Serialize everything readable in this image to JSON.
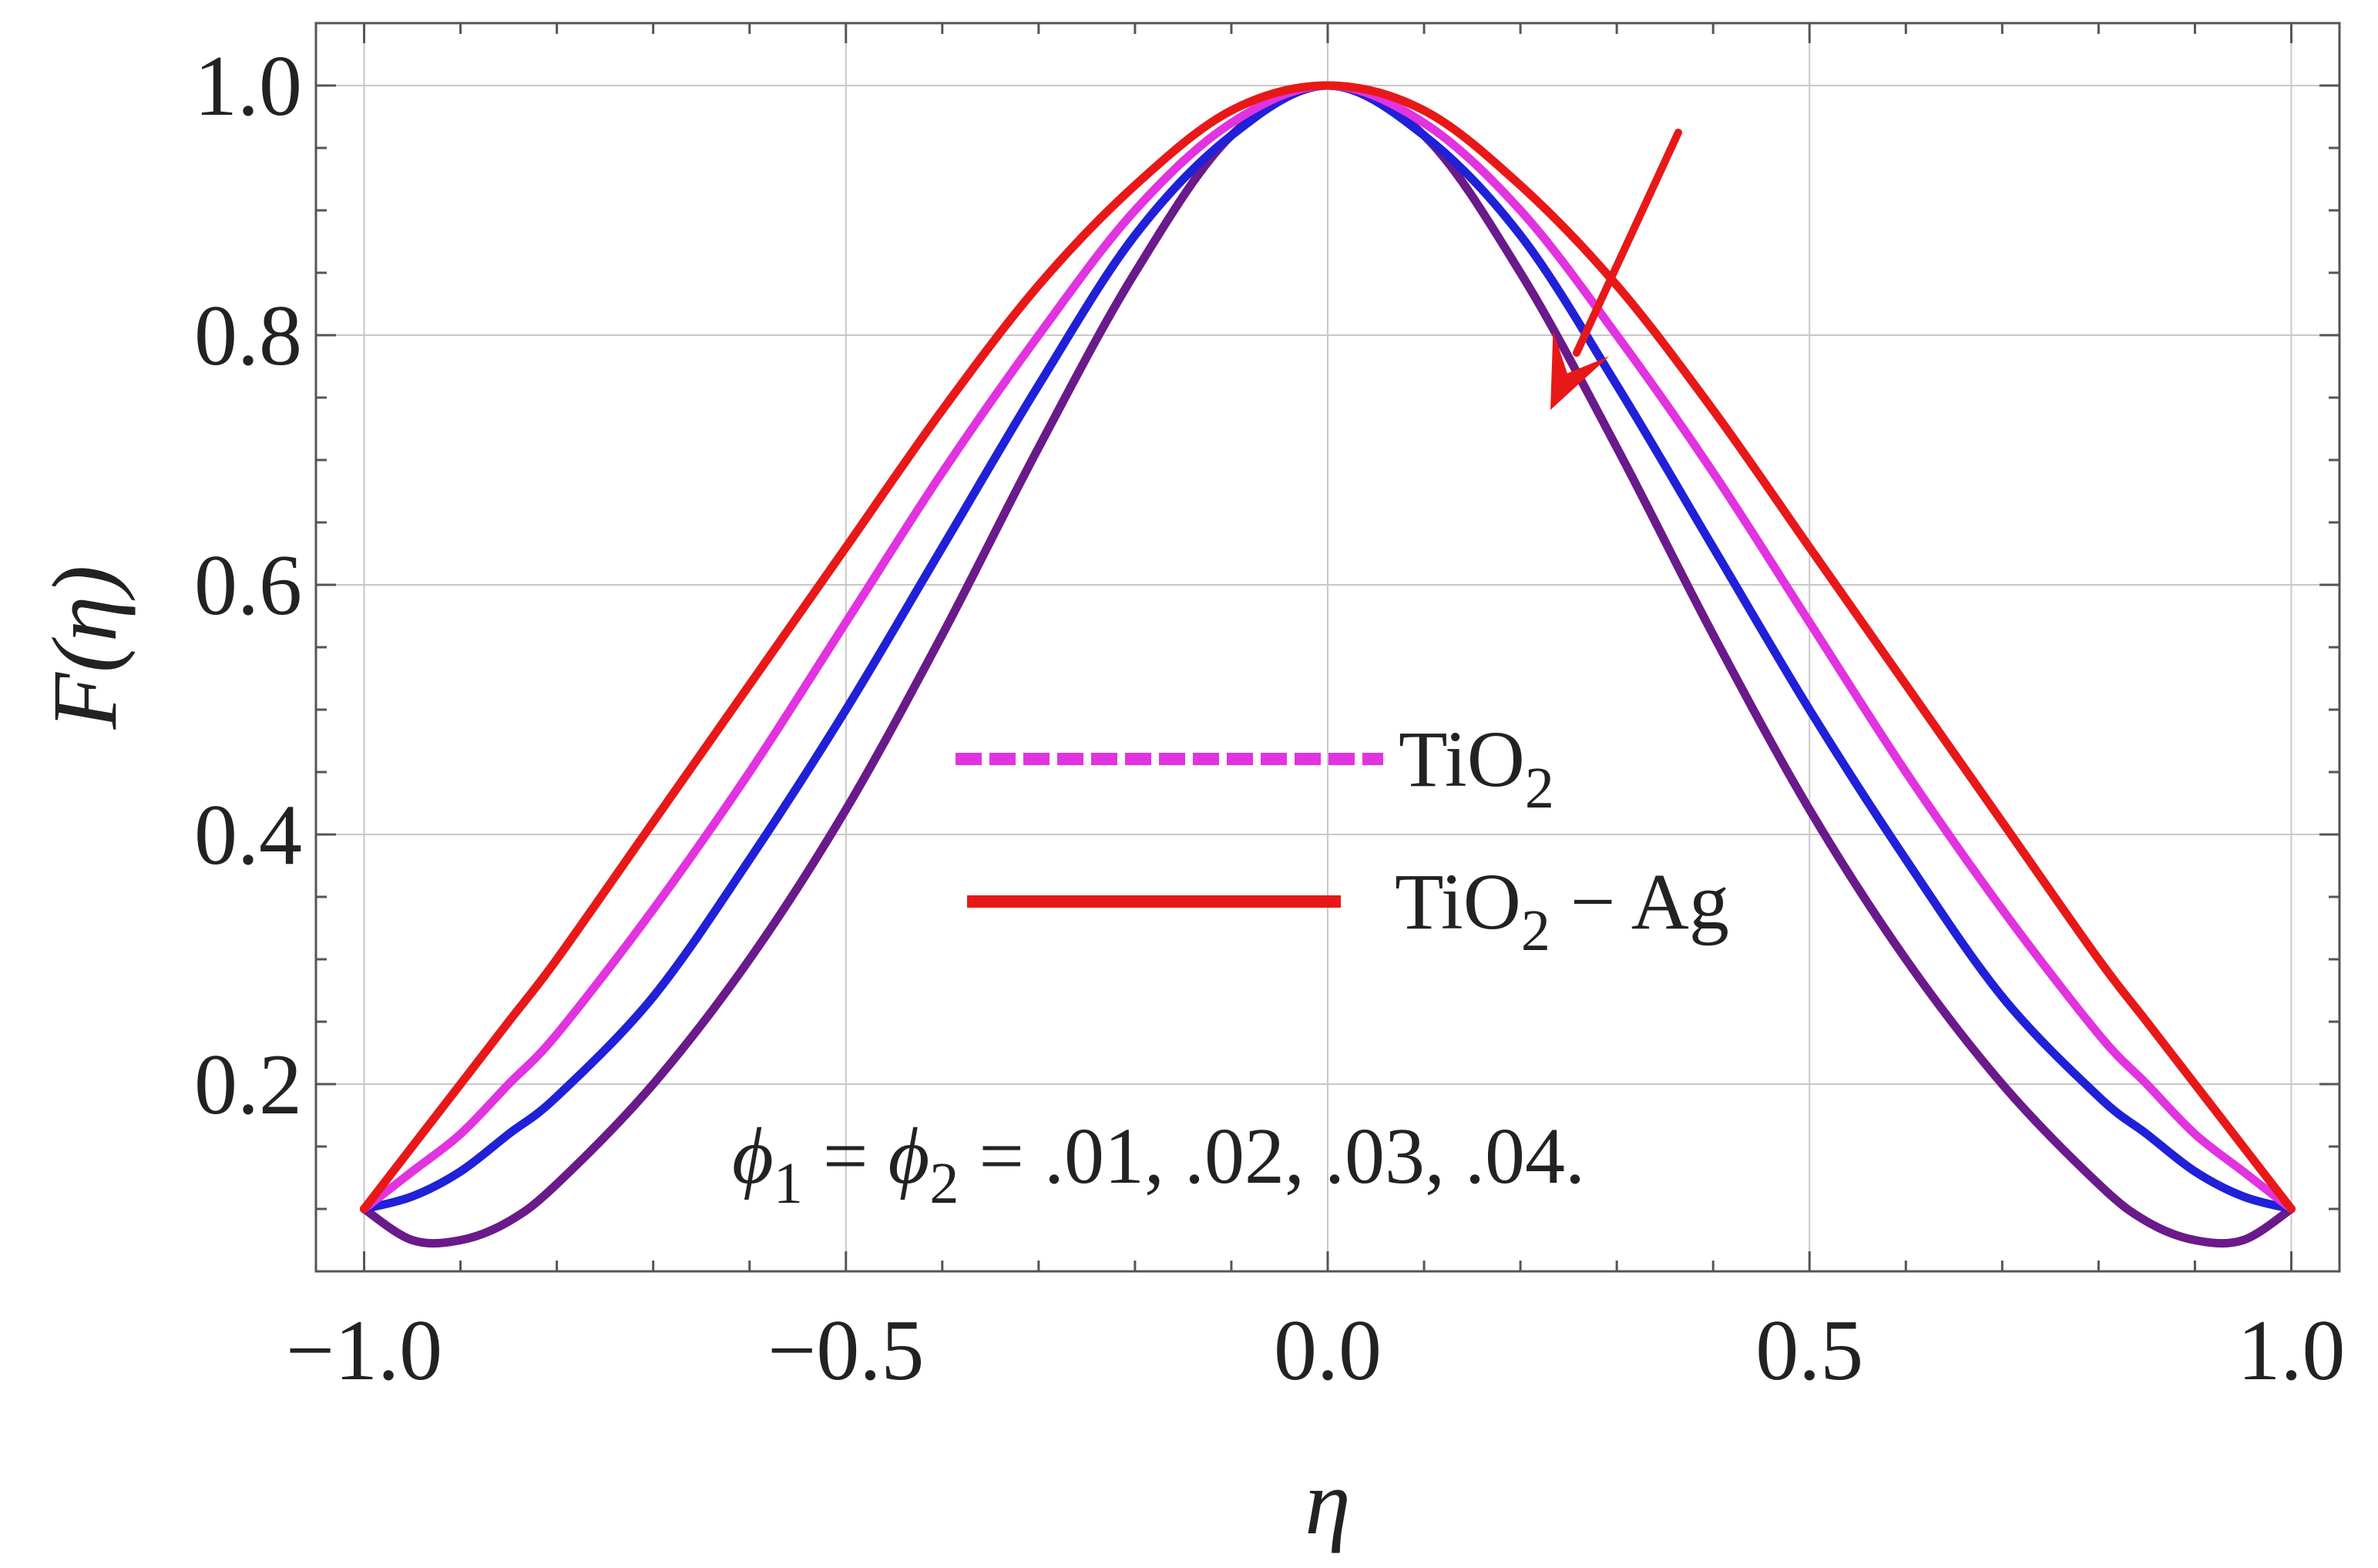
{
  "chart_data": {
    "type": "line",
    "xlabel": "η",
    "ylabel": "F(η)",
    "xlim": [
      -1.05,
      1.05
    ],
    "ylim": [
      0.05,
      1.05
    ],
    "x_ticks": [
      -1.0,
      -0.5,
      0.0,
      0.5,
      1.0
    ],
    "x_tick_labels": [
      "−1.0",
      "−0.5",
      "0.0",
      "0.5",
      "1.0"
    ],
    "y_ticks": [
      0.2,
      0.4,
      0.6,
      0.8,
      1.0
    ],
    "y_tick_labels": [
      "0.2",
      "0.4",
      "0.6",
      "0.8",
      "1.0"
    ],
    "grid": true,
    "legend_position": "center",
    "legend": [
      {
        "label": "TiO",
        "sub": "2",
        "suffix": "",
        "color": "#e233e0",
        "dash": true
      },
      {
        "label": "TiO",
        "sub": "2",
        "suffix": " − Ag",
        "color": "#e81818",
        "dash": false
      }
    ],
    "annotation": {
      "parts": [
        {
          "t": "ϕ",
          "i": true
        },
        {
          "t": "1",
          "s": true
        },
        {
          "t": " = "
        },
        {
          "t": "ϕ",
          "i": true
        },
        {
          "t": "2",
          "s": true
        },
        {
          "t": " = .01, .02, .03, .04."
        }
      ]
    },
    "arrow_color": "#e81818",
    "x": [
      -1.0,
      -0.95,
      -0.9,
      -0.85,
      -0.8,
      -0.7,
      -0.6,
      -0.5,
      -0.4,
      -0.3,
      -0.2,
      -0.1,
      0.0,
      0.1,
      0.2,
      0.3,
      0.4,
      0.5,
      0.6,
      0.7,
      0.8,
      0.85,
      0.9,
      0.95,
      1.0
    ],
    "series": [
      {
        "color": "#e81818",
        "values": [
          0.1,
          0.15,
          0.2,
          0.25,
          0.3,
          0.41,
          0.52,
          0.63,
          0.74,
          0.84,
          0.92,
          0.98,
          1.0,
          0.98,
          0.92,
          0.84,
          0.74,
          0.63,
          0.52,
          0.41,
          0.3,
          0.25,
          0.2,
          0.15,
          0.1
        ]
      },
      {
        "color": "#e233e0",
        "values": [
          0.1,
          0.13,
          0.16,
          0.2,
          0.24,
          0.34,
          0.45,
          0.57,
          0.69,
          0.8,
          0.9,
          0.97,
          1.0,
          0.97,
          0.9,
          0.8,
          0.69,
          0.57,
          0.45,
          0.34,
          0.24,
          0.2,
          0.16,
          0.13,
          0.1
        ]
      },
      {
        "color": "#2020d8",
        "values": [
          0.1,
          0.11,
          0.13,
          0.16,
          0.19,
          0.27,
          0.38,
          0.5,
          0.63,
          0.76,
          0.88,
          0.96,
          1.0,
          0.96,
          0.88,
          0.76,
          0.63,
          0.5,
          0.38,
          0.27,
          0.19,
          0.16,
          0.13,
          0.11,
          0.1
        ]
      },
      {
        "color": "#6a1a8a",
        "values": [
          0.1,
          0.075,
          0.075,
          0.09,
          0.12,
          0.2,
          0.3,
          0.42,
          0.56,
          0.71,
          0.85,
          0.96,
          1.0,
          0.96,
          0.85,
          0.71,
          0.56,
          0.42,
          0.3,
          0.2,
          0.12,
          0.09,
          0.075,
          0.075,
          0.1
        ]
      }
    ]
  }
}
